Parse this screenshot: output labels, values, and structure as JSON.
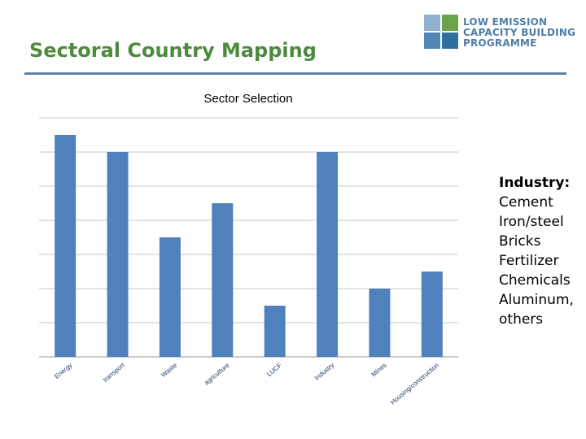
{
  "slide": {
    "title": "Sectoral Country Mapping"
  },
  "logo": {
    "name": "LOW EMISSION CAPACITY BUILDING PROGRAMME",
    "lines": [
      "LOW EMISSION",
      "CAPACITY BUILDING",
      "PROGRAMME"
    ],
    "colors": [
      "#8fb1ce",
      "#6aa44a",
      "#4f86b5",
      "#2f6f9e"
    ]
  },
  "chart_data": {
    "type": "bar",
    "title": "Sector Selection",
    "categories": [
      "Energy",
      "transport",
      "Waste",
      "agriculture",
      "LUCF",
      "Industry",
      "Mines",
      "Housing/construction"
    ],
    "values": [
      6.5,
      6,
      3.5,
      4.5,
      1.5,
      6,
      2,
      2.5
    ],
    "ylim": [
      0,
      7
    ],
    "grid": true,
    "tick_labels_shown": false,
    "bar_color": "#4f81bd"
  },
  "side_note": {
    "heading": "Industry:",
    "items": [
      "Cement",
      "Iron/steel",
      "Bricks",
      "Fertilizer",
      "Chemicals",
      "Aluminum, others"
    ]
  }
}
